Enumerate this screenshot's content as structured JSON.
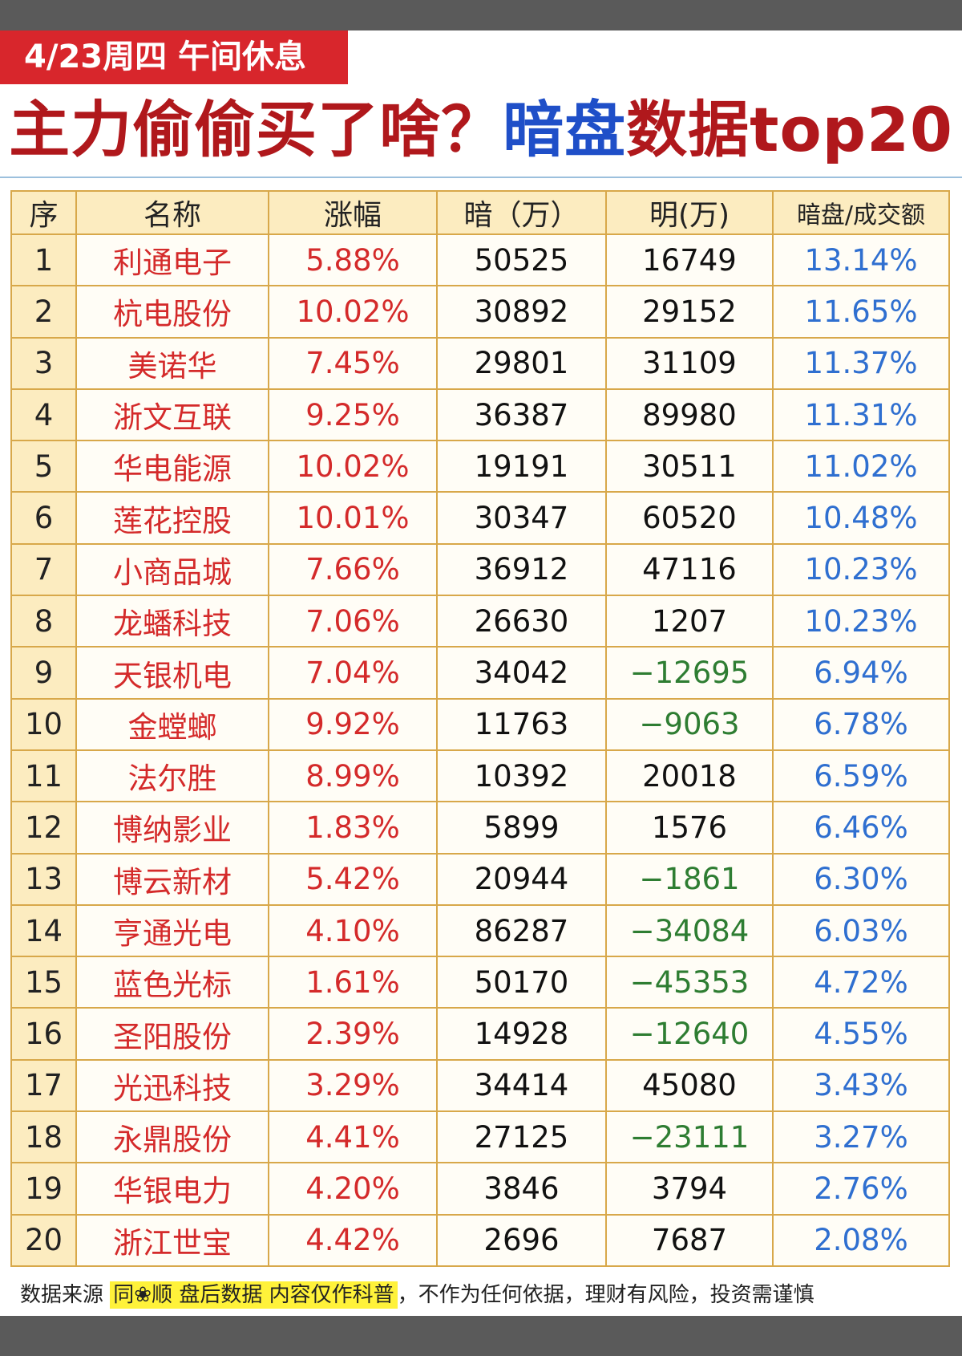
{
  "header": {
    "badge": "4/23周四 午间休息",
    "title_part1": "主力偷偷买了啥？",
    "title_part2": "暗盘",
    "title_part3": "数据top20"
  },
  "table": {
    "columns": [
      "序",
      "名称",
      "涨幅",
      "暗（万）",
      "明(万)",
      "暗盘/成交额"
    ],
    "rows": [
      [
        "1",
        "利通电子",
        "5.88%",
        "50525",
        "16749",
        "13.14%"
      ],
      [
        "2",
        "杭电股份",
        "10.02%",
        "30892",
        "29152",
        "11.65%"
      ],
      [
        "3",
        "美诺华",
        "7.45%",
        "29801",
        "31109",
        "11.37%"
      ],
      [
        "4",
        "浙文互联",
        "9.25%",
        "36387",
        "89980",
        "11.31%"
      ],
      [
        "5",
        "华电能源",
        "10.02%",
        "19191",
        "30511",
        "11.02%"
      ],
      [
        "6",
        "莲花控股",
        "10.01%",
        "30347",
        "60520",
        "10.48%"
      ],
      [
        "7",
        "小商品城",
        "7.66%",
        "36912",
        "47116",
        "10.23%"
      ],
      [
        "8",
        "龙蟠科技",
        "7.06%",
        "26630",
        "1207",
        "10.23%"
      ],
      [
        "9",
        "天银机电",
        "7.04%",
        "34042",
        "−12695",
        "6.94%"
      ],
      [
        "10",
        "金螳螂",
        "9.92%",
        "11763",
        "−9063",
        "6.78%"
      ],
      [
        "11",
        "法尔胜",
        "8.99%",
        "10392",
        "20018",
        "6.59%"
      ],
      [
        "12",
        "博纳影业",
        "1.83%",
        "5899",
        "1576",
        "6.46%"
      ],
      [
        "13",
        "博云新材",
        "5.42%",
        "20944",
        "−1861",
        "6.30%"
      ],
      [
        "14",
        "亨通光电",
        "4.10%",
        "86287",
        "−34084",
        "6.03%"
      ],
      [
        "15",
        "蓝色光标",
        "1.61%",
        "50170",
        "−45353",
        "4.72%"
      ],
      [
        "16",
        "圣阳股份",
        "2.39%",
        "14928",
        "−12640",
        "4.55%"
      ],
      [
        "17",
        "光迅科技",
        "3.29%",
        "34414",
        "45080",
        "3.43%"
      ],
      [
        "18",
        "永鼎股份",
        "4.41%",
        "27125",
        "−23111",
        "3.27%"
      ],
      [
        "19",
        "华银电力",
        "4.20%",
        "3846",
        "3794",
        "2.76%"
      ],
      [
        "20",
        "浙江世宝",
        "4.42%",
        "2696",
        "7687",
        "2.08%"
      ]
    ]
  },
  "footer": {
    "source": "数据来源",
    "highlight": "同❀顺 盘后数据 内容仅作科普",
    "disclaimer": "，不作为任何依据，理财有风险，投资需谨慎"
  }
}
